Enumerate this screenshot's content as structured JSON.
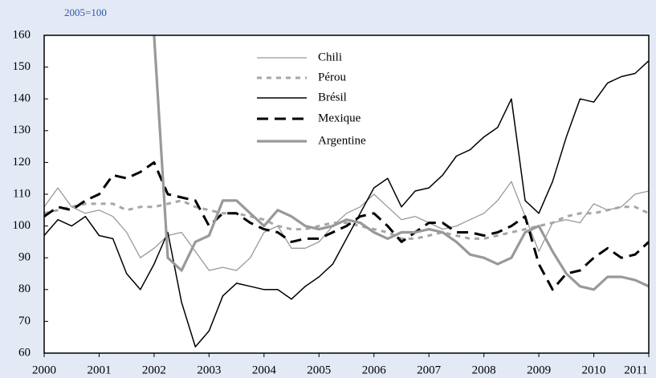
{
  "chart_data": {
    "type": "line",
    "subtitle": "2005=100",
    "x": [
      2000,
      2000.25,
      2000.5,
      2000.75,
      2001,
      2001.25,
      2001.5,
      2001.75,
      2002,
      2002.25,
      2002.5,
      2002.75,
      2003,
      2003.25,
      2003.5,
      2003.75,
      2004,
      2004.25,
      2004.5,
      2004.75,
      2005,
      2005.25,
      2005.5,
      2005.75,
      2006,
      2006.25,
      2006.5,
      2006.75,
      2007,
      2007.25,
      2007.5,
      2007.75,
      2008,
      2008.25,
      2008.5,
      2008.75,
      2009,
      2009.25,
      2009.5,
      2009.75,
      2010,
      2010.25,
      2010.5,
      2010.75,
      2011
    ],
    "xlim": [
      2000,
      2011
    ],
    "xticks": [
      2000,
      2001,
      2002,
      2003,
      2004,
      2005,
      2006,
      2007,
      2008,
      2009,
      2010,
      2011
    ],
    "ylim": [
      60,
      160
    ],
    "yticks": [
      60,
      70,
      80,
      90,
      100,
      110,
      120,
      130,
      140,
      150,
      160
    ],
    "series": [
      {
        "name": "Chili",
        "color": "#999999",
        "width": 1.3,
        "style": "solid",
        "values": [
          106,
          112,
          106,
          104,
          105,
          103,
          98,
          90,
          93,
          97,
          98,
          92,
          86,
          87,
          86,
          90,
          98,
          100,
          93,
          93,
          95,
          100,
          104,
          106,
          110,
          106,
          102,
          103,
          101,
          99,
          100,
          102,
          104,
          108,
          114,
          103,
          92,
          101,
          102,
          101,
          107,
          105,
          106,
          110,
          111
        ]
      },
      {
        "name": "Pérou",
        "color": "#a6a6a6",
        "width": 3,
        "style": "dotted",
        "values": [
          104,
          105,
          106,
          107,
          107,
          107,
          105,
          106,
          106,
          107,
          108,
          106,
          105,
          104,
          104,
          103,
          102,
          100,
          99,
          99,
          100,
          101,
          101,
          100,
          99,
          98,
          96,
          96,
          97,
          98,
          97,
          96,
          96,
          97,
          98,
          99,
          100,
          101,
          103,
          104,
          104,
          105,
          106,
          106,
          104
        ]
      },
      {
        "name": "Brésil",
        "color": "#000000",
        "width": 1.5,
        "style": "solid",
        "values": [
          97,
          102,
          100,
          103,
          97,
          96,
          85,
          80,
          88,
          98,
          76,
          62,
          67,
          78,
          82,
          81,
          80,
          80,
          77,
          81,
          84,
          88,
          96,
          104,
          112,
          115,
          106,
          111,
          112,
          116,
          122,
          124,
          128,
          131,
          140,
          108,
          104,
          114,
          128,
          140,
          139,
          145,
          147,
          148,
          152
        ]
      },
      {
        "name": "Mexique",
        "color": "#000000",
        "width": 3,
        "style": "dashed",
        "values": [
          103,
          106,
          105,
          108,
          110,
          116,
          115,
          117,
          120,
          110,
          109,
          108,
          100,
          104,
          104,
          101,
          99,
          98,
          95,
          96,
          96,
          98,
          100,
          103,
          104,
          100,
          95,
          98,
          101,
          101,
          98,
          98,
          97,
          98,
          100,
          103,
          88,
          80,
          85,
          86,
          90,
          93,
          90,
          91,
          95
        ]
      },
      {
        "name": "Argentine",
        "color": "#999999",
        "width": 3.2,
        "style": "solid",
        "values": [
          null,
          null,
          null,
          null,
          null,
          null,
          null,
          null,
          160,
          90,
          86,
          95,
          97,
          108,
          108,
          104,
          100,
          105,
          103,
          100,
          99,
          100,
          102,
          101,
          98,
          96,
          98,
          98,
          99,
          98,
          95,
          91,
          90,
          88,
          90,
          98,
          100,
          92,
          85,
          81,
          80,
          84,
          84,
          83,
          81
        ]
      }
    ]
  }
}
